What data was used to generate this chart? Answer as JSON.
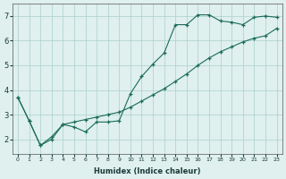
{
  "xlabel": "Humidex (Indice chaleur)",
  "ylabel": "",
  "bg_color": "#dff0ee",
  "line_color": "#1a6b5a",
  "grid_color": "#aacfcc",
  "xlim": [
    -0.5,
    23.5
  ],
  "ylim": [
    1.4,
    7.5
  ],
  "xticks": [
    0,
    1,
    2,
    3,
    4,
    5,
    6,
    7,
    8,
    9,
    10,
    11,
    12,
    13,
    14,
    15,
    16,
    17,
    18,
    19,
    20,
    21,
    22,
    23
  ],
  "yticks": [
    2,
    3,
    4,
    5,
    6,
    7
  ],
  "curve1_x": [
    0,
    1,
    2,
    3,
    4,
    5,
    6,
    7,
    8,
    9,
    10,
    11,
    12,
    13,
    14,
    15,
    16,
    17,
    18,
    19,
    20,
    21,
    22,
    23
  ],
  "curve1_y": [
    3.7,
    2.75,
    1.75,
    2.0,
    2.6,
    2.5,
    2.3,
    2.7,
    2.7,
    2.75,
    3.85,
    4.55,
    5.05,
    5.5,
    6.65,
    6.65,
    7.05,
    7.05,
    6.8,
    6.75,
    6.65,
    6.95,
    7.0,
    6.95
  ],
  "curve2_x": [
    0,
    1,
    2,
    3,
    4,
    5,
    6,
    7,
    8,
    9,
    10,
    11,
    12,
    13,
    14,
    15,
    16,
    17,
    18,
    19,
    20,
    21,
    22,
    23
  ],
  "curve2_y": [
    3.7,
    2.75,
    1.75,
    2.1,
    2.6,
    2.7,
    2.8,
    2.9,
    3.0,
    3.1,
    3.3,
    3.55,
    3.8,
    4.05,
    4.35,
    4.65,
    5.0,
    5.3,
    5.55,
    5.75,
    5.95,
    6.1,
    6.2,
    6.5
  ]
}
